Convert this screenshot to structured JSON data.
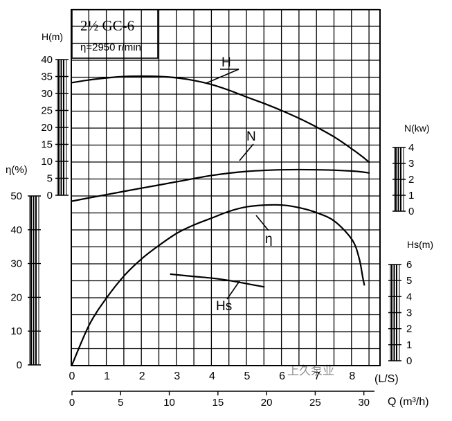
{
  "chart_data": {
    "type": "line",
    "title": "2½ GC-6",
    "subtitle": "η=2950 r/min",
    "x_axis": {
      "label": "(L/S)",
      "range": [
        0,
        8.6
      ],
      "ticks": [
        "0",
        "1",
        "2",
        "3",
        "4",
        "5",
        "6",
        "7",
        "8"
      ]
    },
    "x2_axis": {
      "label": "Q (m³/h)",
      "ticks": [
        "0",
        "5",
        "10",
        "15",
        "20",
        "25",
        "30"
      ]
    },
    "axes": {
      "H": {
        "label": "H(m)",
        "range": [
          0,
          40
        ],
        "ticks": [
          "0",
          "5",
          "10",
          "15",
          "20",
          "25",
          "30",
          "35",
          "40"
        ]
      },
      "eta": {
        "label": "η(%)",
        "range": [
          0,
          50
        ],
        "ticks": [
          "0",
          "10",
          "20",
          "30",
          "40",
          "50"
        ]
      },
      "N": {
        "label": "N(kw)",
        "range": [
          0,
          4
        ],
        "ticks": [
          "0",
          "1",
          "2",
          "3",
          "4"
        ]
      },
      "Hs": {
        "label": "Hs(m)",
        "range": [
          0,
          6
        ],
        "ticks": [
          "0",
          "1",
          "2",
          "3",
          "4",
          "5",
          "6"
        ]
      }
    },
    "grid": true,
    "series": [
      {
        "name": "H",
        "axis": "H",
        "x": [
          0,
          0.5,
          1,
          1.5,
          2,
          2.5,
          3,
          3.5,
          4,
          4.5,
          5,
          5.5,
          6,
          6.5,
          7,
          7.5,
          8,
          8.3,
          8.5
        ],
        "y": [
          33.2,
          34.0,
          34.6,
          35.0,
          35.1,
          35.0,
          34.6,
          33.8,
          32.6,
          30.9,
          28.9,
          27.0,
          24.9,
          22.6,
          20.0,
          17.1,
          13.6,
          11.3,
          9.6
        ]
      },
      {
        "name": "N",
        "axis": "N",
        "x": [
          0,
          1,
          2,
          3,
          4,
          5,
          6,
          7,
          8,
          8.5
        ],
        "y": [
          0.63,
          1.05,
          1.45,
          1.85,
          2.25,
          2.5,
          2.6,
          2.6,
          2.52,
          2.4
        ]
      },
      {
        "name": "η",
        "axis": "eta",
        "x": [
          0,
          0.5,
          1,
          1.5,
          2,
          2.5,
          3,
          3.5,
          4,
          4.5,
          5,
          5.5,
          6,
          6.5,
          7,
          7.5,
          8,
          8.2,
          8.3,
          8.35
        ],
        "y": [
          0,
          12,
          20,
          26.5,
          31.5,
          35.5,
          39,
          41.5,
          43.5,
          45.5,
          46.8,
          47.3,
          47.3,
          46.5,
          45,
          42.5,
          37,
          31.5,
          26,
          23.5
        ]
      },
      {
        "name": "Hs",
        "axis": "Hs",
        "x": [
          2.8,
          3.5,
          4,
          4.5,
          5,
          5.5
        ],
        "y": [
          5.4,
          5.25,
          5.15,
          5.0,
          4.8,
          4.6
        ]
      }
    ],
    "curve_labels": {
      "H": "H",
      "N": "N",
      "eta": "η",
      "Hs": "Hs"
    },
    "watermark": "上久泵业"
  },
  "colors": {
    "line": "#000000",
    "grid": "#000000",
    "background": "#ffffff",
    "watermark": "#8d8d8d"
  }
}
